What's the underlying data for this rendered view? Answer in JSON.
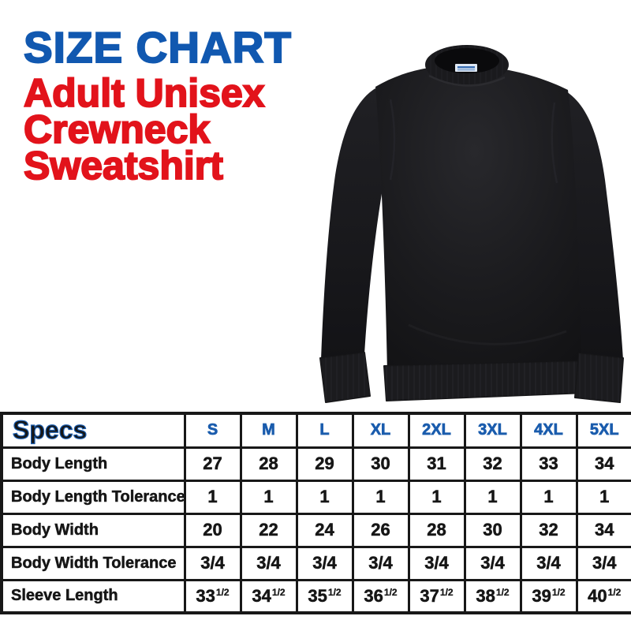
{
  "colors": {
    "title_blue": "#1158b0",
    "subtitle_red": "#e2131b",
    "table_blue": "#1a5cad",
    "text_black": "#161616",
    "border_black": "#181818",
    "garment_dark": "#1b1b1e"
  },
  "header": {
    "title": "SIZE CHART",
    "subtitle_lines": [
      "Adult Unisex",
      "Crewneck",
      "Sweatshirt"
    ]
  },
  "figure": {
    "name": "black-crewneck-sweatshirt"
  },
  "chart_data": {
    "type": "table",
    "title": "SIZE CHART - Adult Unisex Crewneck Sweatshirt",
    "header": [
      "Specs",
      "S",
      "M",
      "L",
      "XL",
      "2XL",
      "3XL",
      "4XL",
      "5XL"
    ],
    "rows": [
      {
        "label": "Body Length",
        "values": [
          "27",
          "28",
          "29",
          "30",
          "31",
          "32",
          "33",
          "34"
        ]
      },
      {
        "label": "Body Length Tolerance",
        "values": [
          "1",
          "1",
          "1",
          "1",
          "1",
          "1",
          "1",
          "1"
        ]
      },
      {
        "label": "Body Width",
        "values": [
          "20",
          "22",
          "24",
          "26",
          "28",
          "30",
          "32",
          "34"
        ]
      },
      {
        "label": "Body Width Tolerance",
        "values": [
          "3/4",
          "3/4",
          "3/4",
          "3/4",
          "3/4",
          "3/4",
          "3/4",
          "3/4"
        ]
      },
      {
        "label": "Sleeve Length",
        "values": [
          {
            "base": "33",
            "frac": "1/2"
          },
          {
            "base": "34",
            "frac": "1/2"
          },
          {
            "base": "35",
            "frac": "1/2"
          },
          {
            "base": "36",
            "frac": "1/2"
          },
          {
            "base": "37",
            "frac": "1/2"
          },
          {
            "base": "38",
            "frac": "1/2"
          },
          {
            "base": "39",
            "frac": "1/2"
          },
          {
            "base": "40",
            "frac": "1/2"
          }
        ]
      }
    ]
  }
}
